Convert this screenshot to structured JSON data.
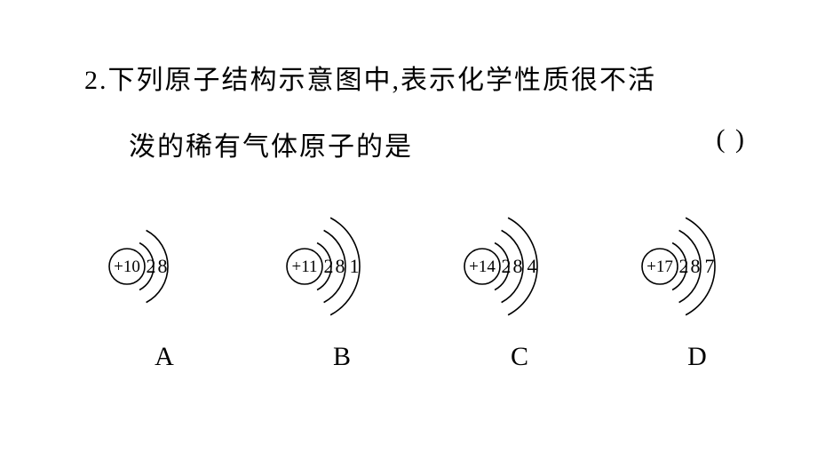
{
  "colors": {
    "background": "#ffffff",
    "text": "#000000",
    "stroke": "#000000"
  },
  "question": {
    "number": "2.",
    "line1": "2.下列原子结构示意图中,表示化学性质很不活",
    "line2_prefix": "泼的稀有气体原子的是",
    "paren": "(      )"
  },
  "diagram_style": {
    "nucleus_radius": 20,
    "shell_start_radius": 30,
    "shell_gap": 16,
    "stroke_width": 1.6,
    "arc_start_deg": -62,
    "arc_end_deg": 62,
    "nucleus_fontsize": 19,
    "shell_fontsize": 22
  },
  "options": [
    {
      "label": "A",
      "nucleus": "+10",
      "shells": [
        "2",
        "8"
      ]
    },
    {
      "label": "B",
      "nucleus": "+11",
      "shells": [
        "2",
        "8",
        "1"
      ]
    },
    {
      "label": "C",
      "nucleus": "+14",
      "shells": [
        "2",
        "8",
        "4"
      ]
    },
    {
      "label": "D",
      "nucleus": "+17",
      "shells": [
        "2",
        "8",
        "7"
      ]
    }
  ]
}
